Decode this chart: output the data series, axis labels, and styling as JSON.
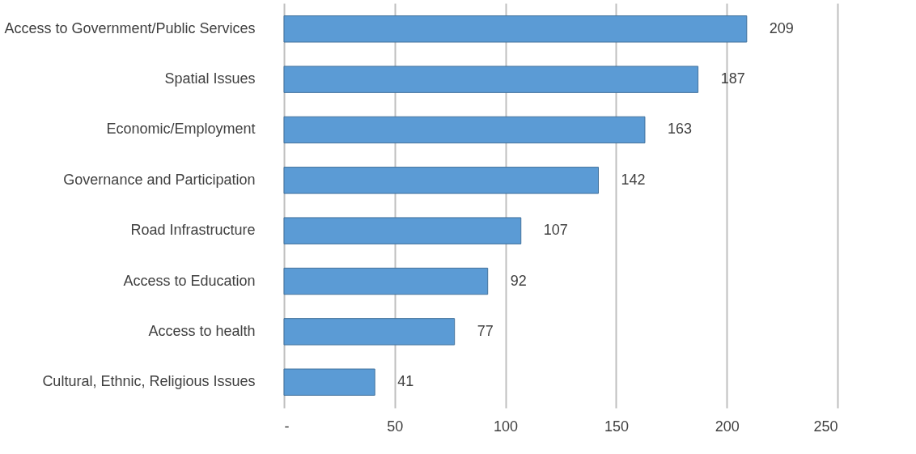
{
  "chart_data": {
    "type": "bar",
    "orientation": "horizontal",
    "categories": [
      "Access to Government/Public Services",
      "Spatial Issues",
      "Economic/Employment",
      "Governance and Participation",
      "Road Infrastructure",
      "Access to Education",
      "Access to health",
      "Cultural, Ethnic, Religious Issues"
    ],
    "values": [
      209,
      187,
      163,
      142,
      107,
      92,
      77,
      41
    ],
    "color": "#5b9bd5",
    "xlim": [
      0,
      250
    ],
    "xticks": [
      {
        "value": 0,
        "label": "-"
      },
      50,
      100,
      150,
      200,
      250
    ],
    "grid": "x",
    "data_labels": true
  }
}
